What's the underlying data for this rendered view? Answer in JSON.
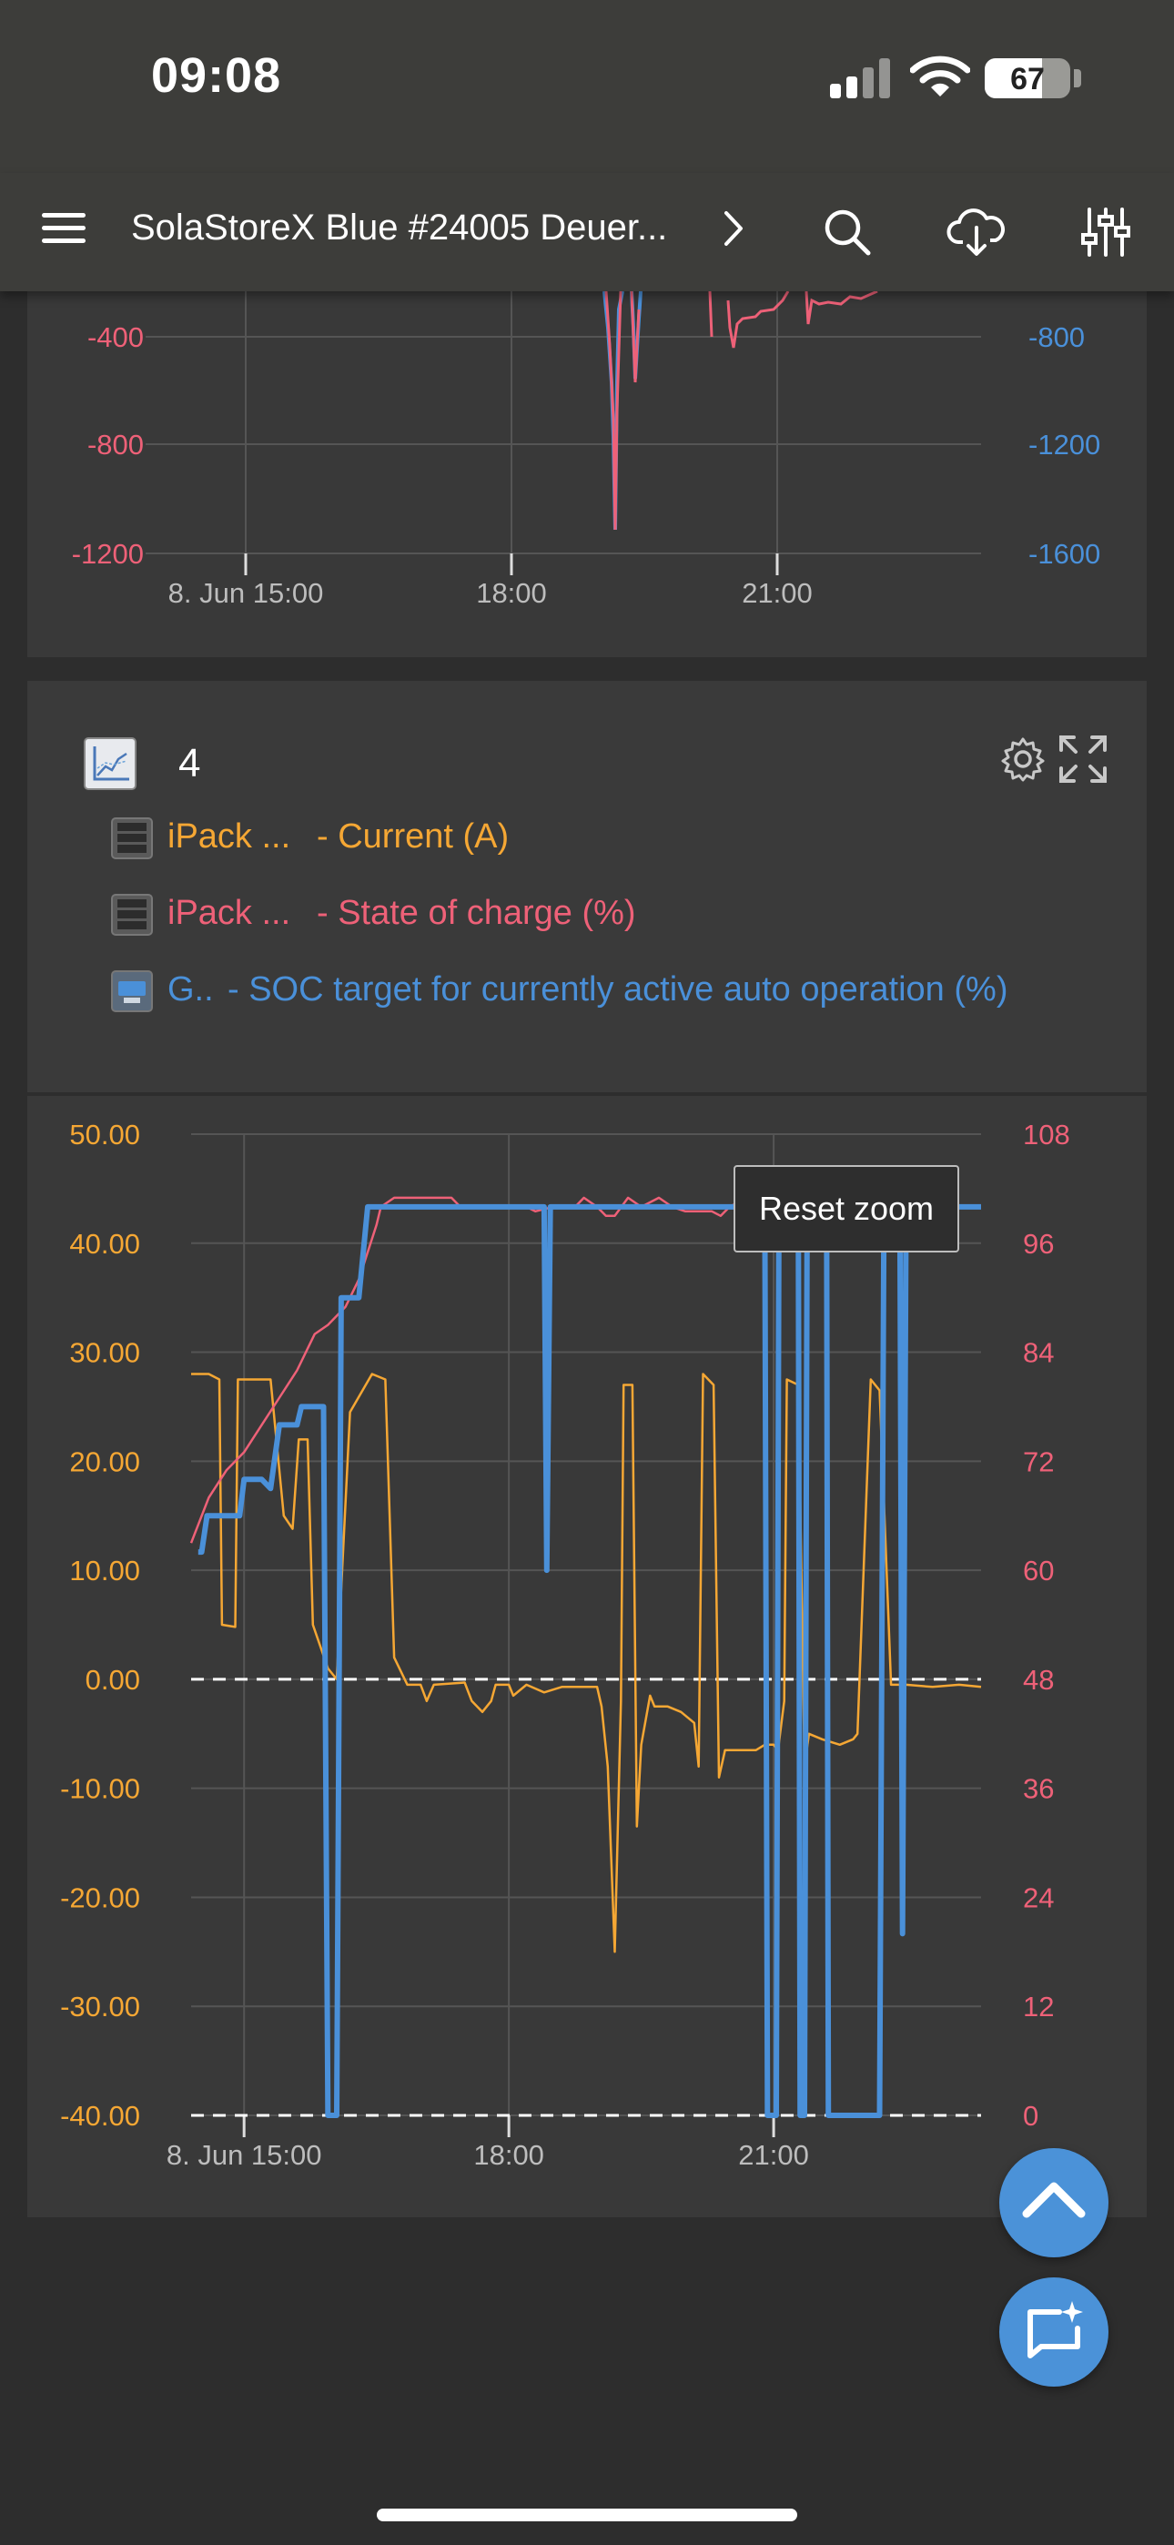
{
  "status_bar": {
    "time": "09:08",
    "battery": "67",
    "battery_level": 0.67,
    "icons": [
      "cellular-signal-icon",
      "wifi-icon",
      "battery-icon"
    ]
  },
  "app_bar": {
    "title": "SolaStoreX Blue #24005 Deuer...",
    "icons": [
      "menu-icon",
      "chevron-right-icon",
      "search-icon",
      "cloud-download-icon",
      "sliders-icon"
    ]
  },
  "top_chart": {
    "left_ticks": [
      "-400",
      "-800",
      "-1200"
    ],
    "right_ticks": [
      "-800",
      "-1200",
      "-1600"
    ],
    "x_ticks": [
      "8. Jun 15:00",
      "18:00",
      "21:00"
    ]
  },
  "chart_card": {
    "title": "4",
    "legend": [
      {
        "device": "iPack ...",
        "label": "- Current (A)",
        "color": "#f5a734"
      },
      {
        "device": "iPack ...",
        "label": "- State of charge (%)",
        "color": "#ee6178"
      },
      {
        "device": "G..",
        "label": "- SOC target for currently active auto operation (%)",
        "color": "#4a90d9"
      }
    ],
    "icons": [
      "chart-icon",
      "gear-icon",
      "expand-icon"
    ]
  },
  "reset_zoom_label": "Reset zoom",
  "chart_data": {
    "type": "line",
    "x_ticks": [
      "8. Jun 15:00",
      "18:00",
      "21:00"
    ],
    "y_left_ticks": [
      "50.00",
      "40.00",
      "30.00",
      "20.00",
      "10.00",
      "0.00",
      "-10.00",
      "-20.00",
      "-30.00",
      "-40.00"
    ],
    "y_right_ticks": [
      "108",
      "96",
      "84",
      "72",
      "60",
      "48",
      "36",
      "24",
      "12",
      "0"
    ],
    "y_left_range": [
      -40,
      50
    ],
    "y_right_range": [
      0,
      108
    ],
    "x_range_hours": [
      14.4,
      23.35
    ],
    "series": [
      {
        "axis": "left",
        "color": "#f5a734",
        "points": [
          [
            14.4,
            28
          ],
          [
            14.6,
            28
          ],
          [
            14.72,
            27.5
          ],
          [
            14.75,
            5
          ],
          [
            14.9,
            4.8
          ],
          [
            14.93,
            27.5
          ],
          [
            15.3,
            27.5
          ],
          [
            15.45,
            15
          ],
          [
            15.55,
            13.8
          ],
          [
            15.62,
            22
          ],
          [
            15.72,
            22
          ],
          [
            15.78,
            5
          ],
          [
            15.95,
            1
          ],
          [
            16.05,
            0
          ],
          [
            16.2,
            24.5
          ],
          [
            16.45,
            28
          ],
          [
            16.6,
            27.5
          ],
          [
            16.7,
            2
          ],
          [
            16.85,
            -0.5
          ],
          [
            17.0,
            -0.5
          ],
          [
            17.07,
            -2
          ],
          [
            17.15,
            -0.5
          ],
          [
            17.5,
            -0.3
          ],
          [
            17.58,
            -2
          ],
          [
            17.7,
            -3
          ],
          [
            17.8,
            -2
          ],
          [
            17.85,
            -0.5
          ],
          [
            18.0,
            -0.5
          ],
          [
            18.05,
            -1.5
          ],
          [
            18.2,
            -0.5
          ],
          [
            18.4,
            -1.2
          ],
          [
            18.6,
            -0.7
          ],
          [
            18.8,
            -0.7
          ],
          [
            19.0,
            -0.7
          ],
          [
            19.05,
            -2.5
          ],
          [
            19.12,
            -8
          ],
          [
            19.2,
            -25
          ],
          [
            19.27,
            -2
          ],
          [
            19.3,
            27
          ],
          [
            19.4,
            27
          ],
          [
            19.45,
            -13.5
          ],
          [
            19.5,
            -6
          ],
          [
            19.6,
            -1.5
          ],
          [
            19.65,
            -2.5
          ],
          [
            19.8,
            -2.5
          ],
          [
            19.95,
            -3
          ],
          [
            20.1,
            -4
          ],
          [
            20.15,
            -8
          ],
          [
            20.2,
            28
          ],
          [
            20.32,
            27
          ],
          [
            20.38,
            -9
          ],
          [
            20.45,
            -6.5
          ],
          [
            20.6,
            -6.5
          ],
          [
            20.8,
            -6.5
          ],
          [
            20.9,
            -6
          ],
          [
            21.0,
            -6
          ],
          [
            21.05,
            -6.5
          ],
          [
            21.12,
            -2
          ],
          [
            21.15,
            27.5
          ],
          [
            21.28,
            27
          ],
          [
            21.35,
            -8
          ],
          [
            21.4,
            -5
          ],
          [
            21.55,
            -5.5
          ],
          [
            21.75,
            -6
          ],
          [
            21.9,
            -5.5
          ],
          [
            21.95,
            -5
          ],
          [
            22.1,
            27.5
          ],
          [
            22.2,
            26.5
          ],
          [
            22.33,
            -0.5
          ],
          [
            22.5,
            -0.5
          ],
          [
            22.8,
            -0.7
          ],
          [
            23.1,
            -0.5
          ],
          [
            23.35,
            -0.7
          ]
        ]
      },
      {
        "axis": "right",
        "color": "#ee6178",
        "points": [
          [
            14.4,
            63
          ],
          [
            14.6,
            68
          ],
          [
            14.8,
            71
          ],
          [
            15.0,
            73
          ],
          [
            15.2,
            76
          ],
          [
            15.4,
            79
          ],
          [
            15.6,
            82
          ],
          [
            15.8,
            86
          ],
          [
            15.95,
            87
          ],
          [
            16.05,
            88
          ],
          [
            16.15,
            89
          ],
          [
            16.3,
            92
          ],
          [
            16.4,
            95
          ],
          [
            16.5,
            98
          ],
          [
            16.55,
            100
          ],
          [
            16.7,
            101
          ],
          [
            17.0,
            101
          ],
          [
            17.35,
            101
          ],
          [
            17.45,
            100
          ],
          [
            17.6,
            100
          ],
          [
            18.0,
            100
          ],
          [
            18.2,
            100
          ],
          [
            18.3,
            99.5
          ],
          [
            18.5,
            100
          ],
          [
            18.75,
            100
          ],
          [
            18.85,
            101
          ],
          [
            19.0,
            100
          ],
          [
            19.1,
            99
          ],
          [
            19.2,
            99
          ],
          [
            19.35,
            101
          ],
          [
            19.5,
            100
          ],
          [
            19.7,
            101
          ],
          [
            19.85,
            100
          ],
          [
            20.0,
            99.5
          ],
          [
            20.3,
            99.5
          ],
          [
            20.4,
            99
          ],
          [
            20.5,
            100
          ],
          [
            20.7,
            101
          ],
          [
            21.0,
            101
          ],
          [
            21.3,
            101
          ],
          [
            21.6,
            100
          ],
          [
            22.0,
            101
          ],
          [
            22.3,
            101
          ],
          [
            22.8,
            100.5
          ],
          [
            23.1,
            100
          ],
          [
            23.35,
            100
          ]
        ]
      },
      {
        "axis": "right",
        "color": "#4a90d9",
        "points": [
          [
            14.48,
            62
          ],
          [
            14.52,
            62
          ],
          [
            14.58,
            66
          ],
          [
            14.95,
            66
          ],
          [
            15.0,
            70
          ],
          [
            15.2,
            70
          ],
          [
            15.3,
            69
          ],
          [
            15.4,
            76
          ],
          [
            15.6,
            76
          ],
          [
            15.65,
            78
          ],
          [
            15.9,
            78
          ],
          [
            15.95,
            0
          ],
          [
            16.05,
            0
          ],
          [
            16.1,
            90
          ],
          [
            16.3,
            90
          ],
          [
            16.4,
            100
          ],
          [
            18.4,
            100
          ],
          [
            18.43,
            60
          ],
          [
            18.47,
            100
          ],
          [
            20.9,
            100
          ],
          [
            20.93,
            0
          ],
          [
            21.03,
            0
          ],
          [
            21.06,
            100
          ],
          [
            21.28,
            100
          ],
          [
            21.3,
            0
          ],
          [
            21.35,
            0
          ],
          [
            21.38,
            100
          ],
          [
            21.6,
            100
          ],
          [
            21.62,
            0
          ],
          [
            22.2,
            0
          ],
          [
            22.25,
            100
          ],
          [
            22.43,
            100
          ],
          [
            22.46,
            20
          ],
          [
            22.5,
            100
          ],
          [
            23.35,
            100
          ]
        ]
      }
    ],
    "reference_lines": [
      0,
      -40
    ]
  }
}
